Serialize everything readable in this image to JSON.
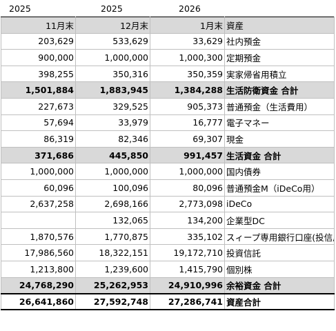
{
  "years": [
    "2025",
    "2025",
    "2026"
  ],
  "header": [
    "11月末",
    "12月末",
    "1月末",
    "資産"
  ],
  "rows": [
    {
      "type": "normal",
      "cells": [
        "203,629",
        "533,629",
        "33,629",
        "社内預金"
      ]
    },
    {
      "type": "normal",
      "cells": [
        "900,000",
        "1,000,000",
        "1,000,300",
        "定期預金"
      ]
    },
    {
      "type": "normal",
      "cells": [
        "398,255",
        "350,316",
        "350,359",
        "実家帰省用積立"
      ]
    },
    {
      "type": "total",
      "cells": [
        "1,501,884",
        "1,883,945",
        "1,384,288",
        "生活防衛資金 合計"
      ]
    },
    {
      "type": "normal",
      "cells": [
        "227,673",
        "329,525",
        "905,373",
        "普通預金（生活費用）"
      ]
    },
    {
      "type": "normal",
      "cells": [
        "57,694",
        "33,979",
        "16,777",
        "電子マネー"
      ]
    },
    {
      "type": "normal",
      "cells": [
        "86,319",
        "82,346",
        "69,307",
        "現金"
      ]
    },
    {
      "type": "total",
      "cells": [
        "371,686",
        "445,850",
        "991,457",
        "生活資金 合計"
      ]
    },
    {
      "type": "normal",
      "cells": [
        "1,000,000",
        "1,000,000",
        "1,000,000",
        "国内債券"
      ]
    },
    {
      "type": "normal",
      "cells": [
        "60,096",
        "100,096",
        "80,096",
        "普通預金M（iDeCo用）"
      ]
    },
    {
      "type": "normal",
      "cells": [
        "2,637,258",
        "2,698,166",
        "2,773,098",
        "iDeCo"
      ]
    },
    {
      "type": "normal",
      "cells": [
        "",
        "132,065",
        "134,200",
        "企業型DC"
      ]
    },
    {
      "type": "normal",
      "cells": [
        "1,870,576",
        "1,770,875",
        "335,102",
        "スィープ専用銀行口座(投信用)"
      ]
    },
    {
      "type": "normal",
      "cells": [
        "17,986,560",
        "18,322,151",
        "19,172,710",
        "投資信託"
      ]
    },
    {
      "type": "normal",
      "cells": [
        "1,213,800",
        "1,239,600",
        "1,415,790",
        "個別株"
      ]
    },
    {
      "type": "total",
      "cells": [
        "24,768,290",
        "25,262,953",
        "24,910,996",
        "余裕資金 合計"
      ]
    },
    {
      "type": "grand",
      "cells": [
        "26,641,860",
        "27,592,748",
        "27,286,741",
        "資産合計"
      ]
    }
  ]
}
